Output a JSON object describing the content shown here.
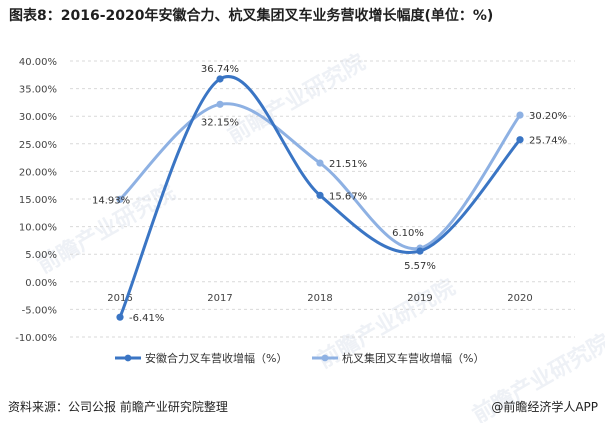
{
  "title": "图表8：2016-2020年安徽合力、杭叉集团叉车业务营收增长幅度(单位：%)",
  "source": "资料来源：公司公报 前瞻产业研究院整理",
  "brand": "@前瞻经济学人APP",
  "watermark": "前瞻产业研究院",
  "chart_data": {
    "type": "line",
    "categories": [
      "2016",
      "2017",
      "2018",
      "2019",
      "2020"
    ],
    "ylim": [
      -10,
      40
    ],
    "yticks": [
      -10,
      -5,
      0,
      5,
      10,
      15,
      20,
      25,
      30,
      35,
      40
    ],
    "ytick_labels": [
      "-10.00%",
      "-5.00%",
      "0.00%",
      "5.00%",
      "10.00%",
      "15.00%",
      "20.00%",
      "25.00%",
      "30.00%",
      "35.00%",
      "40.00%"
    ],
    "grid": true,
    "legend_position": "bottom",
    "series": [
      {
        "name": "安徽合力叉车营收增幅（%）",
        "values": [
          -6.41,
          36.74,
          15.67,
          5.57,
          25.74
        ],
        "labels": [
          "-6.41%",
          "36.74%",
          "15.67%",
          "5.57%",
          "25.74%"
        ],
        "color": "#3a75c4"
      },
      {
        "name": "杭叉集团叉车营收增幅（%）",
        "values": [
          14.93,
          32.15,
          21.51,
          6.1,
          30.2
        ],
        "labels": [
          "14.93%",
          "32.15%",
          "21.51%",
          "6.10%",
          "30.20%"
        ],
        "color": "#8eb1e3"
      }
    ]
  }
}
